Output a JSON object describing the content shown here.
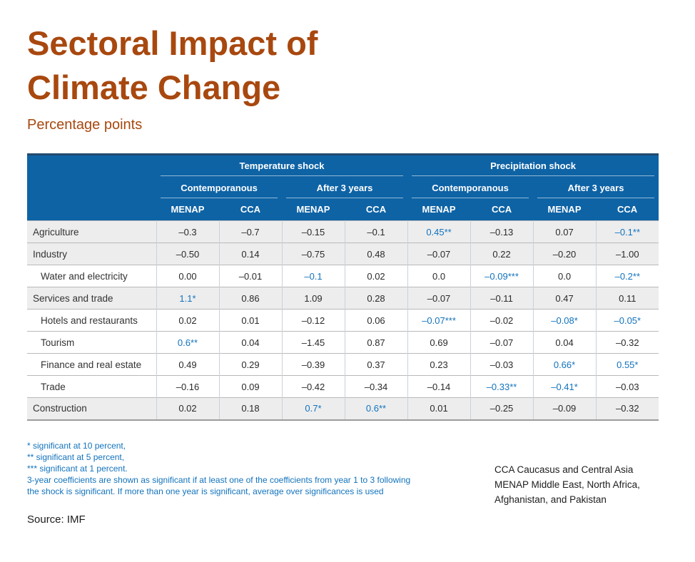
{
  "page": {
    "title_lines": [
      "Sectoral Impact of",
      "Climate Change"
    ],
    "subtitle": "Percentage points",
    "source": "Source: IMF"
  },
  "colors": {
    "accent_orange": "#A8480F",
    "header_blue": "#0E63A5",
    "header_top_border": "#234A6D",
    "significant_blue": "#1273BD",
    "row_shade_gray": "#EDEDEE"
  },
  "chart_data": {
    "type": "table",
    "title": "Sectoral Impact of Climate Change",
    "subtitle": "Percentage points",
    "group_headers": [
      "Temperature shock",
      "Precipitation shock"
    ],
    "subgroup_headers": [
      "Contemporanous",
      "After 3 years",
      "Contemporanous",
      "After 3 years"
    ],
    "column_headers": [
      "MENAP",
      "CCA",
      "MENAP",
      "CCA",
      "MENAP",
      "CCA",
      "MENAP",
      "CCA"
    ],
    "rows": [
      {
        "label": "Agriculture",
        "indent": false,
        "shaded": true,
        "values": [
          "–0.3",
          "–0.7",
          "–0.15",
          "–0.1",
          "0.45**",
          "–0.13",
          "0.07",
          "–0.1**"
        ],
        "sig": [
          false,
          false,
          false,
          false,
          true,
          false,
          false,
          true
        ]
      },
      {
        "label": "Industry",
        "indent": false,
        "shaded": true,
        "values": [
          "–0.50",
          "0.14",
          "–0.75",
          "0.48",
          "–0.07",
          "0.22",
          "–0.20",
          "–1.00"
        ],
        "sig": [
          false,
          false,
          false,
          false,
          false,
          false,
          false,
          false
        ]
      },
      {
        "label": "Water and electricity",
        "indent": true,
        "shaded": false,
        "values": [
          "0.00",
          "–0.01",
          "–0.1",
          "0.02",
          "0.0",
          "–0.09***",
          "0.0",
          "–0.2**"
        ],
        "sig": [
          false,
          false,
          true,
          false,
          false,
          true,
          false,
          true
        ]
      },
      {
        "label": "Services and trade",
        "indent": false,
        "shaded": true,
        "values": [
          "1.1*",
          "0.86",
          "1.09",
          "0.28",
          "–0.07",
          "–0.11",
          "0.47",
          "0.11"
        ],
        "sig": [
          true,
          false,
          false,
          false,
          false,
          false,
          false,
          false
        ]
      },
      {
        "label": "Hotels and restaurants",
        "indent": true,
        "shaded": false,
        "values": [
          "0.02",
          "0.01",
          "–0.12",
          "0.06",
          "–0.07***",
          "–0.02",
          "–0.08*",
          "–0.05*"
        ],
        "sig": [
          false,
          false,
          false,
          false,
          true,
          false,
          true,
          true
        ]
      },
      {
        "label": "Tourism",
        "indent": true,
        "shaded": false,
        "values": [
          "0.6**",
          "0.04",
          "–1.45",
          "0.87",
          "0.69",
          "–0.07",
          "0.04",
          "–0.32"
        ],
        "sig": [
          true,
          false,
          false,
          false,
          false,
          false,
          false,
          false
        ]
      },
      {
        "label": "Finance and real estate",
        "indent": true,
        "shaded": false,
        "values": [
          "0.49",
          "0.29",
          "–0.39",
          "0.37",
          "0.23",
          "–0.03",
          "0.66*",
          "0.55*"
        ],
        "sig": [
          false,
          false,
          false,
          false,
          false,
          false,
          true,
          true
        ]
      },
      {
        "label": "Trade",
        "indent": true,
        "shaded": false,
        "values": [
          "–0.16",
          "0.09",
          "–0.42",
          "–0.34",
          "–0.14",
          "–0.33**",
          "–0.41*",
          "–0.03"
        ],
        "sig": [
          false,
          false,
          false,
          false,
          false,
          true,
          true,
          false
        ]
      },
      {
        "label": "Construction",
        "indent": false,
        "shaded": true,
        "values": [
          "0.02",
          "0.18",
          "0.7*",
          "0.6**",
          "0.01",
          "–0.25",
          "–0.09",
          "–0.32"
        ],
        "sig": [
          false,
          false,
          true,
          true,
          false,
          false,
          false,
          false
        ]
      }
    ]
  },
  "footnotes": [
    "* significant at 10 percent,",
    "** significant at 5 percent,",
    "*** significant at 1 percent.",
    "3-year coefficients are shown as significant if at least one of the coefficients from year 1 to 3 following",
    "the shock is significant. If more than one year is significant, average over significances is used"
  ],
  "abbreviations": [
    "CCA Caucasus and Central Asia",
    "MENAP Middle East, North Africa,",
    "Afghanistan, and Pakistan"
  ]
}
